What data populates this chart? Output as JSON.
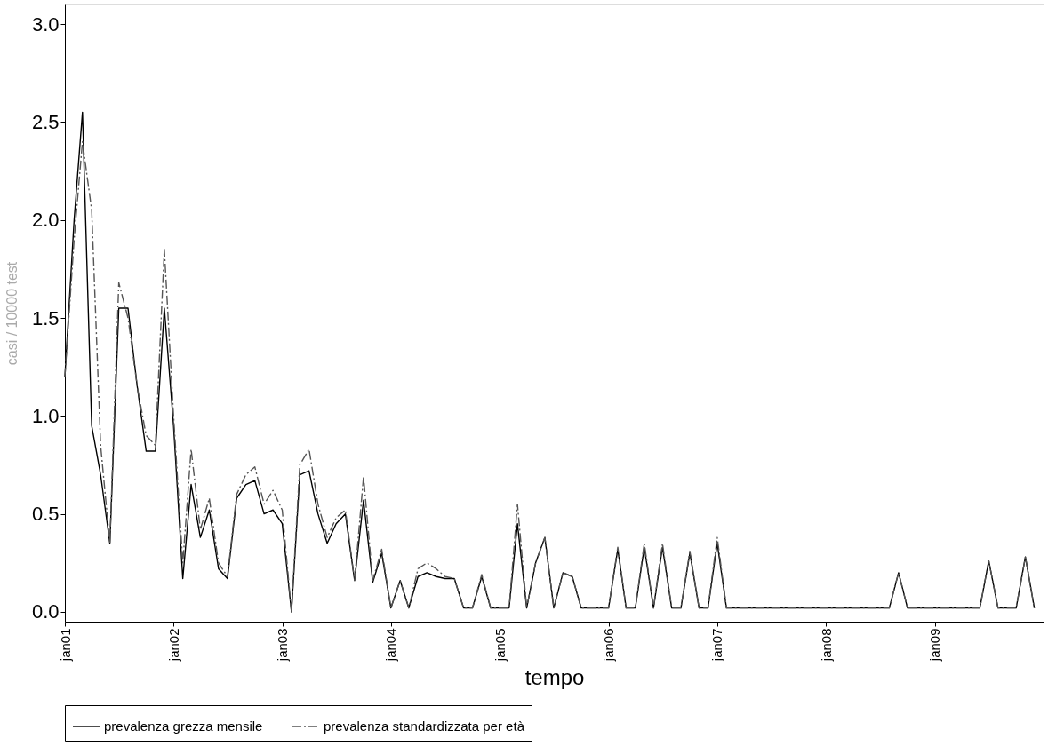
{
  "chart_data": {
    "type": "line",
    "xlabel": "tempo",
    "ylabel": "casi / 10000 test",
    "xlim": [
      "2001-01",
      "2010-01"
    ],
    "ylim": [
      -0.05,
      3.1
    ],
    "xticks": [
      {
        "value": "2001-01",
        "label": "jan01"
      },
      {
        "value": "2002-01",
        "label": "jan02"
      },
      {
        "value": "2003-01",
        "label": "jan03"
      },
      {
        "value": "2004-01",
        "label": "jan04"
      },
      {
        "value": "2005-01",
        "label": "jan05"
      },
      {
        "value": "2006-01",
        "label": "jan06"
      },
      {
        "value": "2007-01",
        "label": "jan07"
      },
      {
        "value": "2008-01",
        "label": "jan08"
      },
      {
        "value": "2009-01",
        "label": "jan09"
      }
    ],
    "yticks": [
      {
        "value": 0,
        "label": "0.0"
      },
      {
        "value": 0.5,
        "label": "0.5"
      },
      {
        "value": 1,
        "label": "1.0"
      },
      {
        "value": 1.5,
        "label": "1.5"
      },
      {
        "value": 2,
        "label": "2.0"
      },
      {
        "value": 2.5,
        "label": "2.5"
      },
      {
        "value": 3,
        "label": "3.0"
      }
    ],
    "grid": false,
    "legend": "bottom",
    "x": [
      "2001-01",
      "2001-02",
      "2001-03",
      "2001-04",
      "2001-05",
      "2001-06",
      "2001-07",
      "2001-08",
      "2001-09",
      "2001-10",
      "2001-11",
      "2001-12",
      "2002-01",
      "2002-02",
      "2002-03",
      "2002-04",
      "2002-05",
      "2002-06",
      "2002-07",
      "2002-08",
      "2002-09",
      "2002-10",
      "2002-11",
      "2002-12",
      "2003-01",
      "2003-02",
      "2003-03",
      "2003-04",
      "2003-05",
      "2003-06",
      "2003-07",
      "2003-08",
      "2003-09",
      "2003-10",
      "2003-11",
      "2003-12",
      "2004-01",
      "2004-02",
      "2004-03",
      "2004-04",
      "2004-05",
      "2004-06",
      "2004-07",
      "2004-08",
      "2004-09",
      "2004-10",
      "2004-11",
      "2004-12",
      "2005-01",
      "2005-02",
      "2005-03",
      "2005-04",
      "2005-05",
      "2005-06",
      "2005-07",
      "2005-08",
      "2005-09",
      "2005-10",
      "2005-11",
      "2005-12",
      "2006-01",
      "2006-02",
      "2006-03",
      "2006-04",
      "2006-05",
      "2006-06",
      "2006-07",
      "2006-08",
      "2006-09",
      "2006-10",
      "2006-11",
      "2006-12",
      "2007-01",
      "2007-02",
      "2008-08",
      "2008-09",
      "2008-10",
      "2009-06",
      "2009-07",
      "2009-08",
      "2009-09",
      "2009-10",
      "2009-11",
      "2009-12"
    ],
    "series": [
      {
        "name": "prevalenza grezza mensile",
        "color": "#000000",
        "line_style": "solid",
        "values": [
          1.2,
          2.0,
          2.55,
          0.95,
          0.7,
          0.35,
          1.55,
          1.55,
          1.15,
          0.82,
          0.82,
          1.55,
          0.95,
          0.17,
          0.65,
          0.38,
          0.52,
          0.22,
          0.17,
          0.58,
          0.65,
          0.67,
          0.5,
          0.52,
          0.45,
          0.0,
          0.7,
          0.72,
          0.5,
          0.35,
          0.45,
          0.5,
          0.16,
          0.57,
          0.15,
          0.3,
          0.02,
          0.16,
          0.02,
          0.18,
          0.2,
          0.18,
          0.17,
          0.17,
          0.02,
          0.02,
          0.18,
          0.02,
          0.02,
          0.02,
          0.45,
          0.02,
          0.25,
          0.38,
          0.02,
          0.2,
          0.18,
          0.02,
          0.02,
          0.02,
          0.02,
          0.32,
          0.02,
          0.02,
          0.33,
          0.02,
          0.33,
          0.02,
          0.02,
          0.3,
          0.02,
          0.02,
          0.35,
          0.02,
          0.02,
          0.2,
          0.02,
          0.02,
          0.26,
          0.02,
          0.02,
          0.02,
          0.28,
          0.02
        ]
      },
      {
        "name": "prevalenza standardizzata per età",
        "color": "#555555",
        "line_style": "dashdot",
        "values": [
          1.2,
          1.9,
          2.4,
          2.05,
          0.85,
          0.35,
          1.68,
          1.5,
          1.15,
          0.9,
          0.85,
          1.85,
          1.0,
          0.25,
          0.83,
          0.42,
          0.58,
          0.25,
          0.18,
          0.6,
          0.7,
          0.74,
          0.55,
          0.62,
          0.52,
          0.0,
          0.75,
          0.83,
          0.55,
          0.38,
          0.48,
          0.52,
          0.16,
          0.69,
          0.16,
          0.32,
          0.02,
          0.16,
          0.02,
          0.22,
          0.25,
          0.22,
          0.18,
          0.17,
          0.02,
          0.02,
          0.19,
          0.02,
          0.02,
          0.02,
          0.55,
          0.02,
          0.25,
          0.38,
          0.02,
          0.2,
          0.18,
          0.02,
          0.02,
          0.02,
          0.02,
          0.33,
          0.02,
          0.02,
          0.35,
          0.02,
          0.35,
          0.02,
          0.02,
          0.31,
          0.02,
          0.02,
          0.38,
          0.02,
          0.02,
          0.2,
          0.02,
          0.02,
          0.26,
          0.02,
          0.02,
          0.02,
          0.28,
          0.02
        ]
      }
    ]
  }
}
